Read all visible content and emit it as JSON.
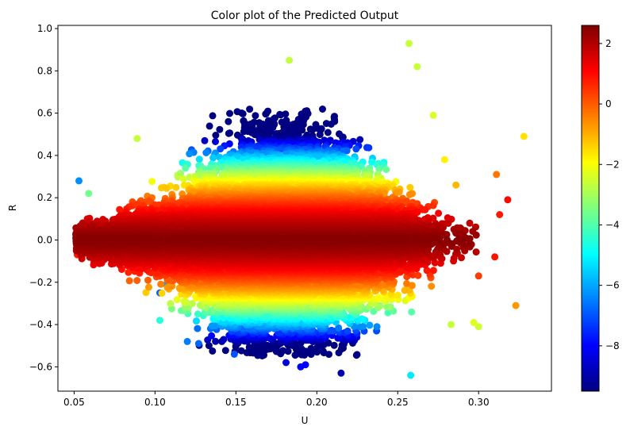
{
  "chart_data": {
    "type": "scatter",
    "title": "Color plot of the Predicted Output",
    "xlabel": "U",
    "ylabel": "R",
    "xlim": [
      0.04,
      0.345
    ],
    "ylim": [
      -0.715,
      1.015
    ],
    "xticks": [
      0.05,
      0.1,
      0.15,
      0.2,
      0.25,
      0.3
    ],
    "xtick_labels": [
      "0.05",
      "0.10",
      "0.15",
      "0.20",
      "0.25",
      "0.30"
    ],
    "yticks": [
      -0.6,
      -0.4,
      -0.2,
      0.0,
      0.2,
      0.4,
      0.6,
      0.8,
      1.0
    ],
    "ytick_labels": [
      "−0.6",
      "−0.4",
      "−0.2",
      "0.0",
      "0.2",
      "0.4",
      "0.6",
      "0.8",
      "1.0"
    ],
    "colormap": "jet",
    "color_range": [
      -9.5,
      2.6
    ],
    "colorbar_ticks": [
      2,
      0,
      -2,
      -4,
      -6,
      -8
    ],
    "colorbar_tick_labels": [
      "2",
      "0",
      "−2",
      "−4",
      "−6",
      "−8"
    ],
    "colorbar_colors": [
      "#00007f",
      "#0000ff",
      "#007fff",
      "#00ffff",
      "#7fff7f",
      "#ffff00",
      "#ff7f00",
      "#ff0000",
      "#7f0000"
    ],
    "grid": false,
    "legend": "none",
    "point_model": "value = 2.5 - 38*R^2 - 6*|R| (dense cloud, n≈16000, centered U≈0.18, R≈0)",
    "n_points": 16000,
    "outliers": [
      {
        "u": 0.328,
        "r": 0.49,
        "v": -1.6
      },
      {
        "u": 0.257,
        "r": 0.93,
        "v": -2.6
      },
      {
        "u": 0.262,
        "r": 0.82,
        "v": -2.6
      },
      {
        "u": 0.183,
        "r": 0.85,
        "v": -2.7
      },
      {
        "u": 0.323,
        "r": -0.31,
        "v": -0.7
      },
      {
        "u": 0.053,
        "r": 0.28,
        "v": -6.3
      },
      {
        "u": 0.215,
        "r": -0.63,
        "v": -9.0
      },
      {
        "u": 0.181,
        "r": -0.58,
        "v": -8.4
      },
      {
        "u": 0.19,
        "r": -0.6,
        "v": -8.0
      },
      {
        "u": 0.193,
        "r": -0.59,
        "v": -8.0
      },
      {
        "u": 0.258,
        "r": -0.64,
        "v": -5.2
      },
      {
        "u": 0.149,
        "r": -0.54,
        "v": -7.0
      },
      {
        "u": 0.12,
        "r": -0.48,
        "v": -6.5
      },
      {
        "u": 0.127,
        "r": -0.49,
        "v": -6.8
      },
      {
        "u": 0.3,
        "r": -0.41,
        "v": -2.5
      },
      {
        "u": 0.297,
        "r": -0.39,
        "v": -2.3
      },
      {
        "u": 0.311,
        "r": 0.31,
        "v": -0.3
      },
      {
        "u": 0.313,
        "r": 0.12,
        "v": 0.8
      },
      {
        "u": 0.318,
        "r": 0.19,
        "v": 1.0
      },
      {
        "u": 0.31,
        "r": -0.08,
        "v": 0.9
      },
      {
        "u": 0.3,
        "r": -0.17,
        "v": 0.4
      },
      {
        "u": 0.052,
        "r": -0.07,
        "v": 0.8
      },
      {
        "u": 0.107,
        "r": -0.21,
        "v": -6.0
      },
      {
        "u": 0.103,
        "r": -0.25,
        "v": -6.8
      },
      {
        "u": 0.103,
        "r": -0.38,
        "v": -4.5
      },
      {
        "u": 0.089,
        "r": 0.48,
        "v": -2.6
      },
      {
        "u": 0.059,
        "r": 0.22,
        "v": -3.6
      },
      {
        "u": 0.272,
        "r": 0.59,
        "v": -2.4
      },
      {
        "u": 0.279,
        "r": 0.38,
        "v": -1.8
      },
      {
        "u": 0.286,
        "r": 0.26,
        "v": -1.1
      },
      {
        "u": 0.283,
        "r": -0.4,
        "v": -2.6
      }
    ]
  }
}
